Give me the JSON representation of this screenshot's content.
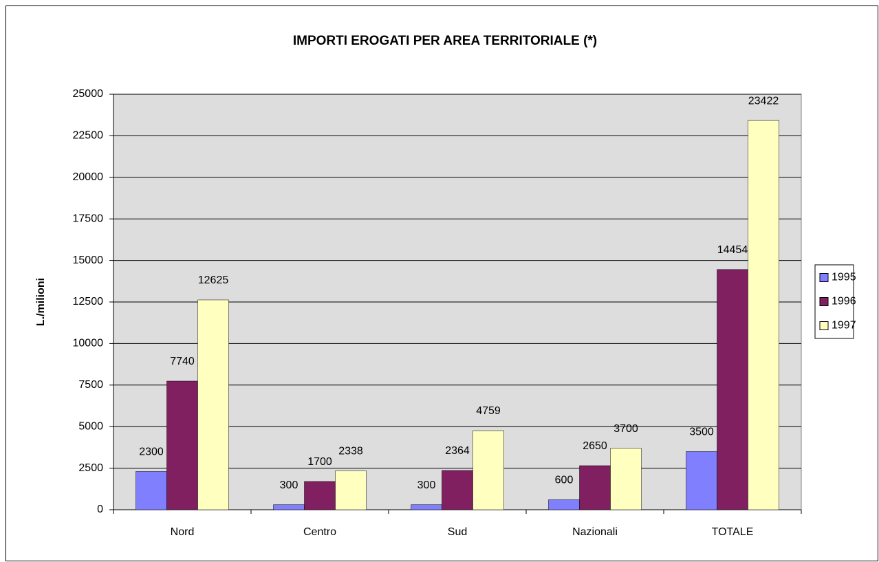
{
  "chart_data": {
    "type": "bar",
    "title": "IMPORTI EROGATI PER AREA TERRITORIALE (*)",
    "y_label": "L./milioni",
    "categories": [
      "Nord",
      "Centro",
      "Sud",
      "Nazionali",
      "TOTALE"
    ],
    "series": [
      {
        "name": "1995",
        "color": "#8080ff",
        "values": [
          2300,
          300,
          300,
          600,
          3500
        ]
      },
      {
        "name": "1996",
        "color": "#802060",
        "values": [
          7740,
          1700,
          2364,
          2650,
          14454
        ]
      },
      {
        "name": "1997",
        "color": "#ffffc0",
        "values": [
          12625,
          2338,
          4759,
          3700,
          23422
        ]
      }
    ],
    "ylim": [
      0,
      25000
    ],
    "yticks": [
      0,
      2500,
      5000,
      7500,
      10000,
      12500,
      15000,
      17500,
      20000,
      22500,
      25000
    ],
    "grid": true,
    "legend": "right"
  }
}
